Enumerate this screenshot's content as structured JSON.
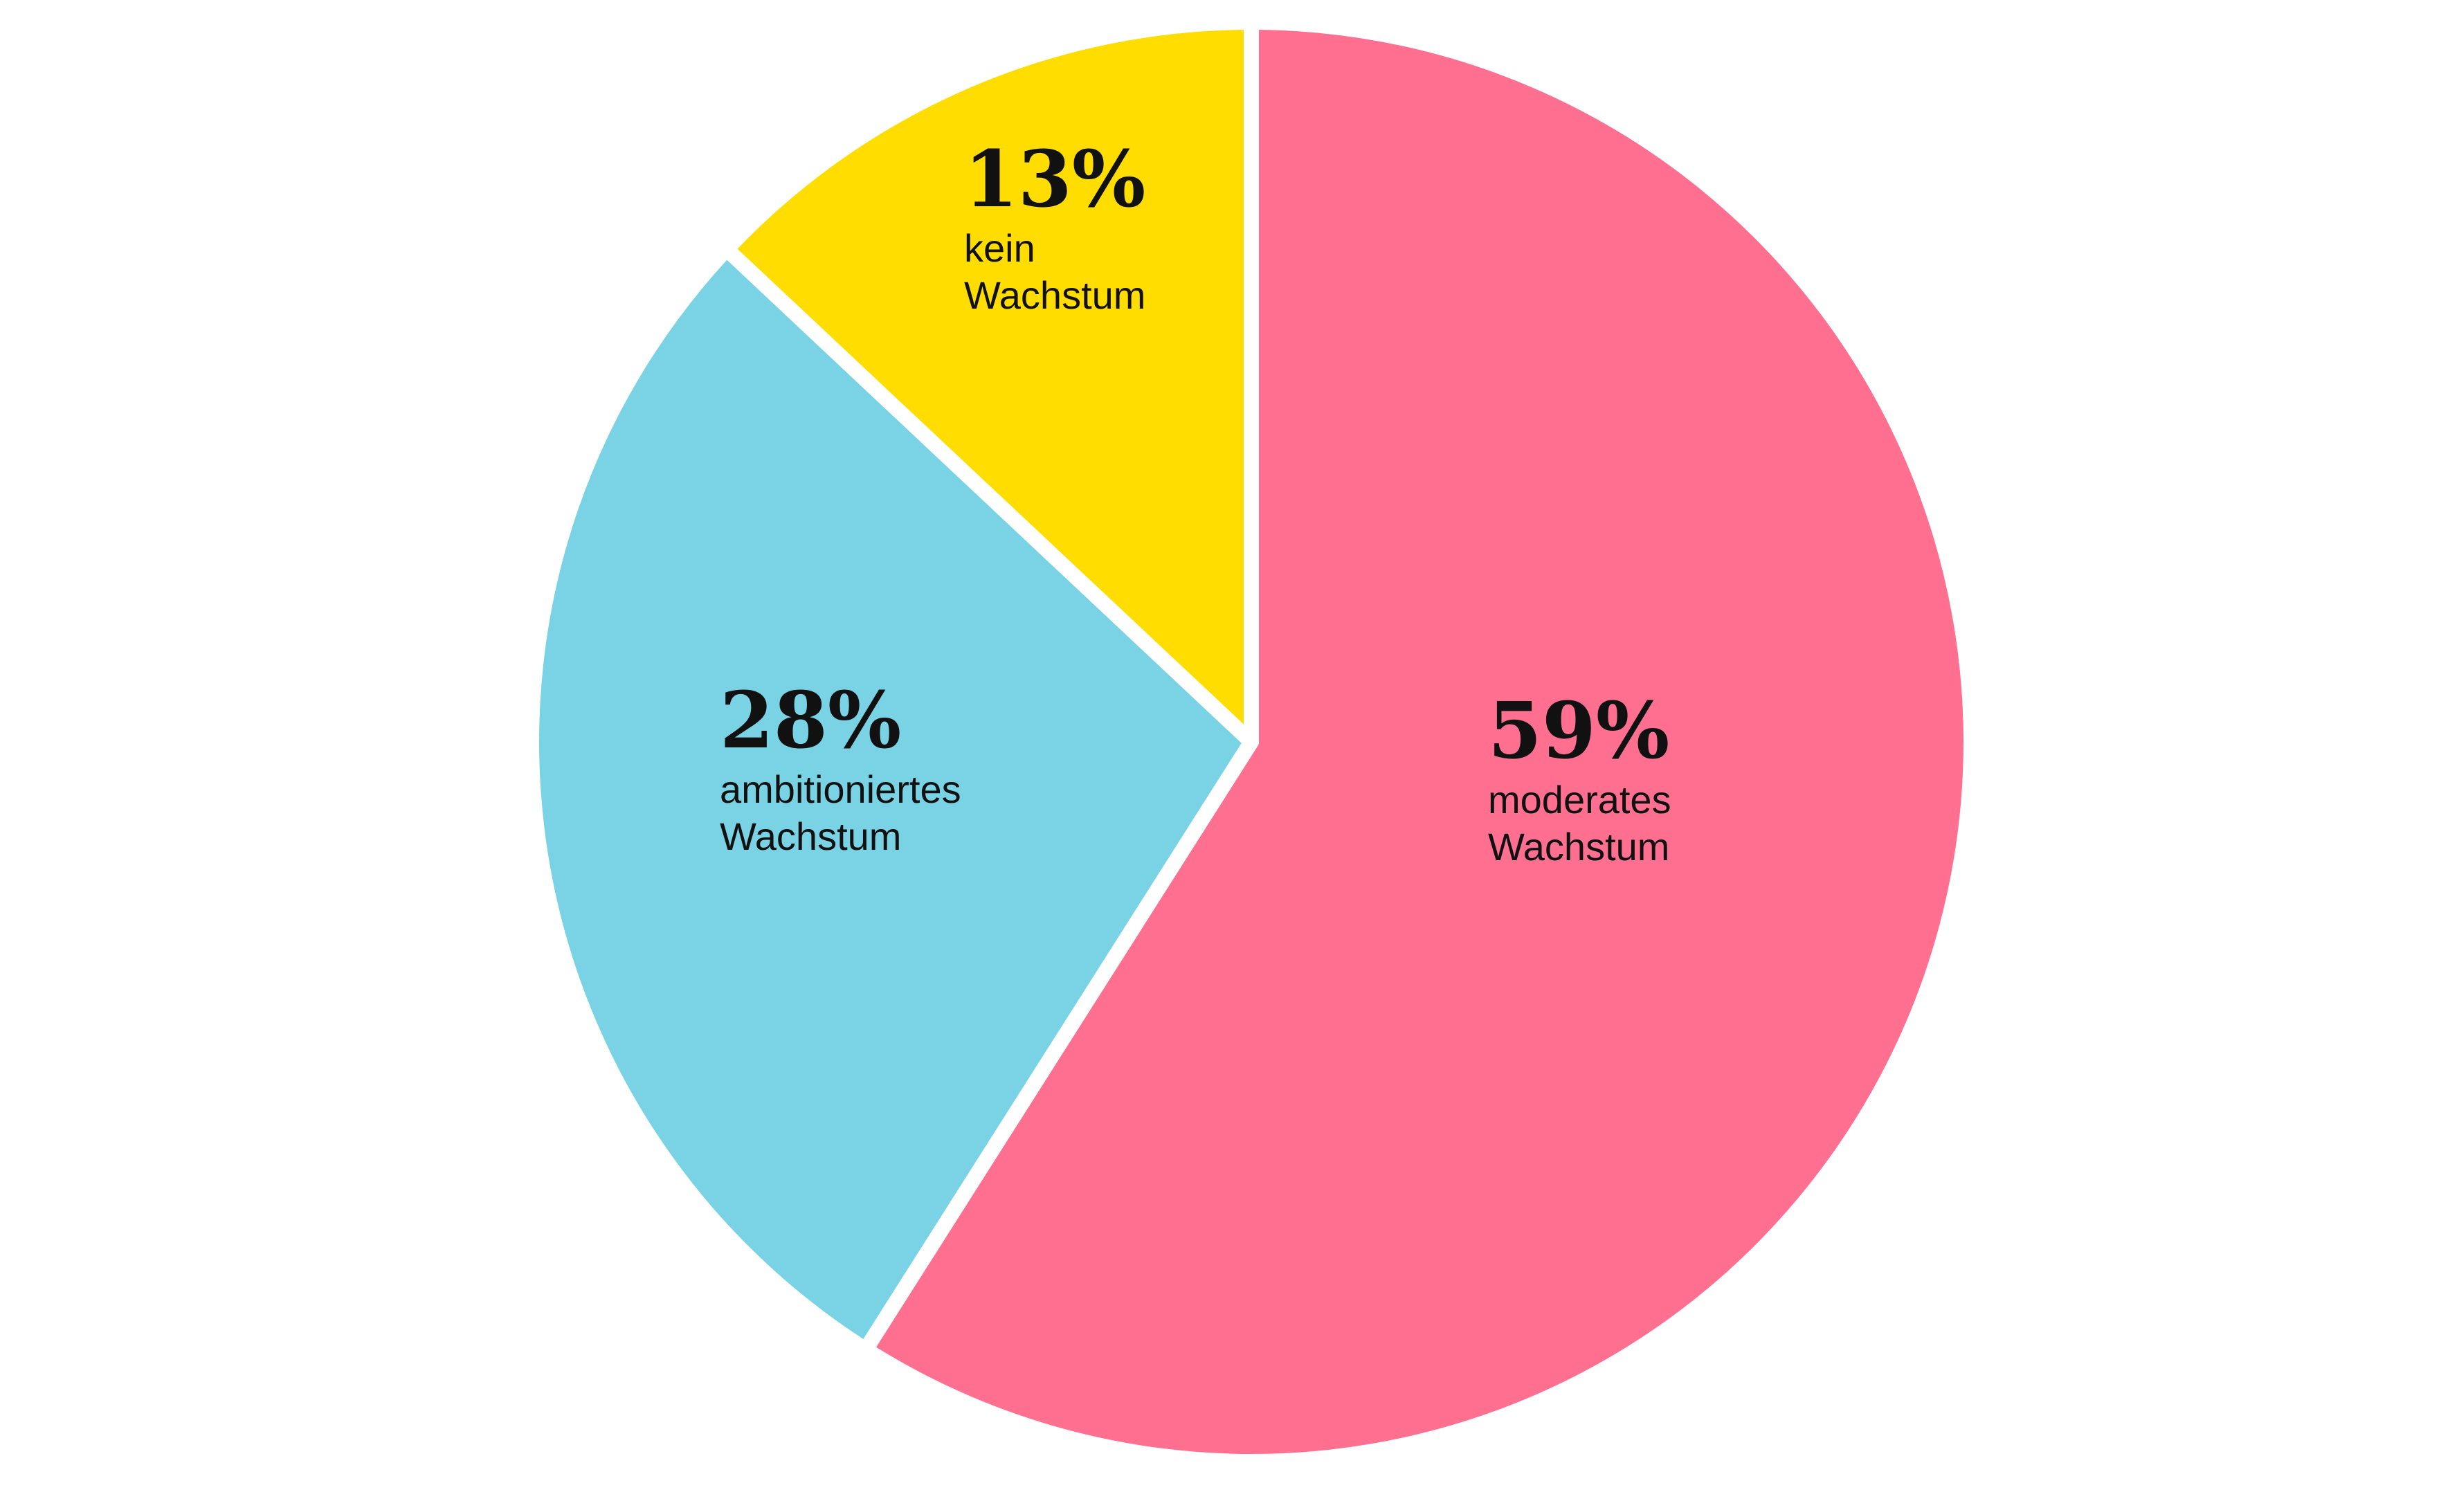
{
  "chart_data": {
    "type": "pie",
    "start": "12 o'clock",
    "direction": "clockwise",
    "slices": [
      {
        "value": 59,
        "percent_label": "59%",
        "label_lines": [
          "moderates",
          "Wachstum"
        ],
        "color": "#FF7090"
      },
      {
        "value": 28,
        "percent_label": "28%",
        "label_lines": [
          "ambitioniertes",
          "Wachstum"
        ],
        "color": "#7AD3E5"
      },
      {
        "value": 13,
        "percent_label": "13%",
        "label_lines": [
          "kein",
          "Wachstum"
        ],
        "color": "#FFDD00"
      }
    ],
    "separator_color": "#FFFFFF",
    "background": "#FFFFFF"
  }
}
